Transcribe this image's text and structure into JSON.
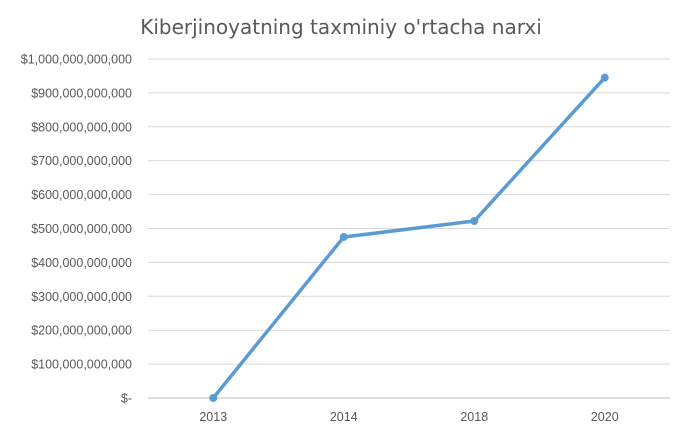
{
  "chart_data": {
    "type": "line",
    "title": "Kiberjinoyatning taxminiy o'rtacha narxi",
    "categories": [
      "2013",
      "2014",
      "2018",
      "2020"
    ],
    "series": [
      {
        "values": [
          0,
          475000000000,
          522000000000,
          945000000000
        ],
        "color": "#5b9bd5"
      }
    ],
    "ylim": [
      0,
      1000000000000
    ],
    "yticks": [
      0,
      100000000000,
      200000000000,
      300000000000,
      400000000000,
      500000000000,
      600000000000,
      700000000000,
      800000000000,
      900000000000,
      1000000000000
    ],
    "ytick_labels": [
      "$-",
      "$100,000,000,000",
      "$200,000,000,000",
      "$300,000,000,000",
      "$400,000,000,000",
      "$500,000,000,000",
      "$600,000,000,000",
      "$700,000,000,000",
      "$800,000,000,000",
      "$900,000,000,000",
      "$1,000,000,000,000"
    ],
    "grid": true,
    "legend": "none",
    "colors": {
      "gridline": "#d9d9d9",
      "text": "#595959"
    }
  }
}
